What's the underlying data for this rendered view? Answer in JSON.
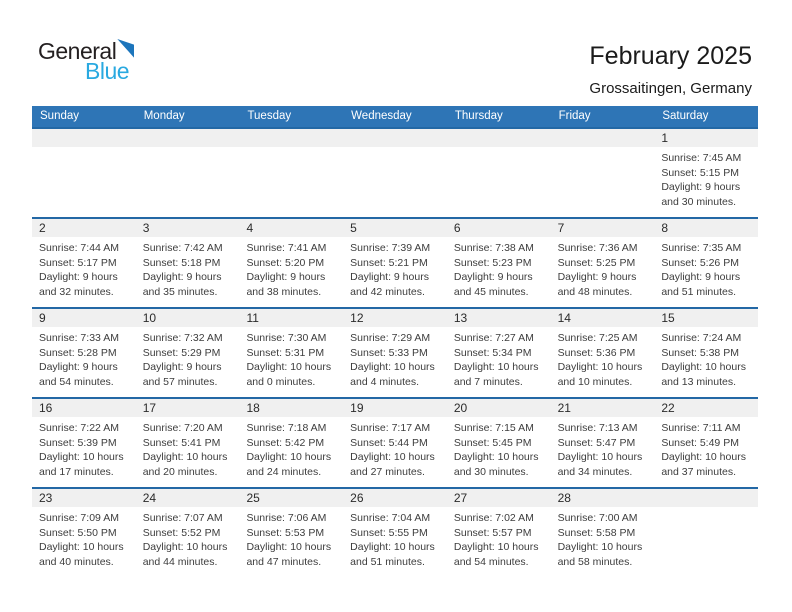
{
  "logo": {
    "text_black": "General",
    "text_blue": "Blue",
    "colors": {
      "text_black": "#231f20",
      "text_blue": "#29a9e0",
      "triangle": "#1c75bc"
    }
  },
  "title": "February 2025",
  "location": "Grossaitingen, Germany",
  "theme": {
    "header_blue": "#2e75b6",
    "row_line_blue": "#2368a5",
    "day_band_gray": "#f0f0f0",
    "body_text": "#3d3d3d"
  },
  "calendar": {
    "weekdays": [
      "Sunday",
      "Monday",
      "Tuesday",
      "Wednesday",
      "Thursday",
      "Friday",
      "Saturday"
    ],
    "weeks": [
      [
        null,
        null,
        null,
        null,
        null,
        null,
        {
          "day": "1",
          "lines": [
            "Sunrise: 7:45 AM",
            "Sunset: 5:15 PM",
            "Daylight: 9 hours",
            "and 30 minutes."
          ]
        }
      ],
      [
        {
          "day": "2",
          "lines": [
            "Sunrise: 7:44 AM",
            "Sunset: 5:17 PM",
            "Daylight: 9 hours",
            "and 32 minutes."
          ]
        },
        {
          "day": "3",
          "lines": [
            "Sunrise: 7:42 AM",
            "Sunset: 5:18 PM",
            "Daylight: 9 hours",
            "and 35 minutes."
          ]
        },
        {
          "day": "4",
          "lines": [
            "Sunrise: 7:41 AM",
            "Sunset: 5:20 PM",
            "Daylight: 9 hours",
            "and 38 minutes."
          ]
        },
        {
          "day": "5",
          "lines": [
            "Sunrise: 7:39 AM",
            "Sunset: 5:21 PM",
            "Daylight: 9 hours",
            "and 42 minutes."
          ]
        },
        {
          "day": "6",
          "lines": [
            "Sunrise: 7:38 AM",
            "Sunset: 5:23 PM",
            "Daylight: 9 hours",
            "and 45 minutes."
          ]
        },
        {
          "day": "7",
          "lines": [
            "Sunrise: 7:36 AM",
            "Sunset: 5:25 PM",
            "Daylight: 9 hours",
            "and 48 minutes."
          ]
        },
        {
          "day": "8",
          "lines": [
            "Sunrise: 7:35 AM",
            "Sunset: 5:26 PM",
            "Daylight: 9 hours",
            "and 51 minutes."
          ]
        }
      ],
      [
        {
          "day": "9",
          "lines": [
            "Sunrise: 7:33 AM",
            "Sunset: 5:28 PM",
            "Daylight: 9 hours",
            "and 54 minutes."
          ]
        },
        {
          "day": "10",
          "lines": [
            "Sunrise: 7:32 AM",
            "Sunset: 5:29 PM",
            "Daylight: 9 hours",
            "and 57 minutes."
          ]
        },
        {
          "day": "11",
          "lines": [
            "Sunrise: 7:30 AM",
            "Sunset: 5:31 PM",
            "Daylight: 10 hours",
            "and 0 minutes."
          ]
        },
        {
          "day": "12",
          "lines": [
            "Sunrise: 7:29 AM",
            "Sunset: 5:33 PM",
            "Daylight: 10 hours",
            "and 4 minutes."
          ]
        },
        {
          "day": "13",
          "lines": [
            "Sunrise: 7:27 AM",
            "Sunset: 5:34 PM",
            "Daylight: 10 hours",
            "and 7 minutes."
          ]
        },
        {
          "day": "14",
          "lines": [
            "Sunrise: 7:25 AM",
            "Sunset: 5:36 PM",
            "Daylight: 10 hours",
            "and 10 minutes."
          ]
        },
        {
          "day": "15",
          "lines": [
            "Sunrise: 7:24 AM",
            "Sunset: 5:38 PM",
            "Daylight: 10 hours",
            "and 13 minutes."
          ]
        }
      ],
      [
        {
          "day": "16",
          "lines": [
            "Sunrise: 7:22 AM",
            "Sunset: 5:39 PM",
            "Daylight: 10 hours",
            "and 17 minutes."
          ]
        },
        {
          "day": "17",
          "lines": [
            "Sunrise: 7:20 AM",
            "Sunset: 5:41 PM",
            "Daylight: 10 hours",
            "and 20 minutes."
          ]
        },
        {
          "day": "18",
          "lines": [
            "Sunrise: 7:18 AM",
            "Sunset: 5:42 PM",
            "Daylight: 10 hours",
            "and 24 minutes."
          ]
        },
        {
          "day": "19",
          "lines": [
            "Sunrise: 7:17 AM",
            "Sunset: 5:44 PM",
            "Daylight: 10 hours",
            "and 27 minutes."
          ]
        },
        {
          "day": "20",
          "lines": [
            "Sunrise: 7:15 AM",
            "Sunset: 5:45 PM",
            "Daylight: 10 hours",
            "and 30 minutes."
          ]
        },
        {
          "day": "21",
          "lines": [
            "Sunrise: 7:13 AM",
            "Sunset: 5:47 PM",
            "Daylight: 10 hours",
            "and 34 minutes."
          ]
        },
        {
          "day": "22",
          "lines": [
            "Sunrise: 7:11 AM",
            "Sunset: 5:49 PM",
            "Daylight: 10 hours",
            "and 37 minutes."
          ]
        }
      ],
      [
        {
          "day": "23",
          "lines": [
            "Sunrise: 7:09 AM",
            "Sunset: 5:50 PM",
            "Daylight: 10 hours",
            "and 40 minutes."
          ]
        },
        {
          "day": "24",
          "lines": [
            "Sunrise: 7:07 AM",
            "Sunset: 5:52 PM",
            "Daylight: 10 hours",
            "and 44 minutes."
          ]
        },
        {
          "day": "25",
          "lines": [
            "Sunrise: 7:06 AM",
            "Sunset: 5:53 PM",
            "Daylight: 10 hours",
            "and 47 minutes."
          ]
        },
        {
          "day": "26",
          "lines": [
            "Sunrise: 7:04 AM",
            "Sunset: 5:55 PM",
            "Daylight: 10 hours",
            "and 51 minutes."
          ]
        },
        {
          "day": "27",
          "lines": [
            "Sunrise: 7:02 AM",
            "Sunset: 5:57 PM",
            "Daylight: 10 hours",
            "and 54 minutes."
          ]
        },
        {
          "day": "28",
          "lines": [
            "Sunrise: 7:00 AM",
            "Sunset: 5:58 PM",
            "Daylight: 10 hours",
            "and 58 minutes."
          ]
        },
        null
      ]
    ]
  }
}
